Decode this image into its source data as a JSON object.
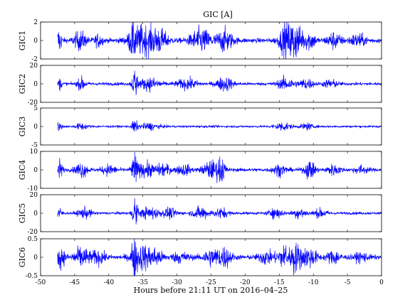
{
  "chart_data": {
    "type": "line",
    "title": "GIC [A]",
    "xlabel": "Hours before  21:11 UT on 2016–04–25",
    "xlim": [
      -50,
      0
    ],
    "xticks": [
      "-50",
      "-45",
      "-40",
      "-35",
      "-30",
      "-25",
      "-20",
      "-15",
      "-10",
      "-5",
      "0"
    ],
    "data_start_hour": -47.5,
    "line_color": "#0000ff",
    "panels": [
      {
        "name": "GIC1",
        "ylim": [
          -2,
          2
        ],
        "yticks": [
          "2",
          "0",
          "-2"
        ],
        "baseline": 0,
        "base_amp": 0.12,
        "bursts": [
          {
            "t": -47.3,
            "w": 0.4,
            "a": 0.6
          },
          {
            "t": -44.2,
            "w": 0.9,
            "a": 0.45
          },
          {
            "t": -41.5,
            "w": 0.6,
            "a": 0.3
          },
          {
            "t": -36.5,
            "w": 0.5,
            "a": 0.6
          },
          {
            "t": -35.0,
            "w": 1.8,
            "a": 0.75
          },
          {
            "t": -32.5,
            "w": 1.2,
            "a": 0.5
          },
          {
            "t": -26.5,
            "w": 1.5,
            "a": 0.6
          },
          {
            "t": -23.0,
            "w": 1.2,
            "a": 0.55
          },
          {
            "t": -14.0,
            "w": 1.0,
            "a": 0.8
          },
          {
            "t": -12.5,
            "w": 1.0,
            "a": 0.75
          },
          {
            "t": -10.5,
            "w": 0.8,
            "a": 0.45
          },
          {
            "t": -7.0,
            "w": 1.0,
            "a": 0.4
          },
          {
            "t": -3.5,
            "w": 1.2,
            "a": 0.3
          }
        ],
        "spikes": [
          {
            "t": -47.2,
            "v": -0.9
          },
          {
            "t": -12.9,
            "v": -1.8
          },
          {
            "t": -14.5,
            "v": 1.3
          },
          {
            "t": -11.6,
            "v": 1.1
          }
        ]
      },
      {
        "name": "GIC2",
        "ylim": [
          -20,
          20
        ],
        "yticks": [
          "20",
          "0",
          "-20"
        ],
        "baseline": 0,
        "base_amp": 0.8,
        "bursts": [
          {
            "t": -47.3,
            "w": 0.4,
            "a": 3
          },
          {
            "t": -44.0,
            "w": 0.6,
            "a": 3
          },
          {
            "t": -36.2,
            "w": 0.4,
            "a": 6
          },
          {
            "t": -34.0,
            "w": 1.5,
            "a": 3
          },
          {
            "t": -28.5,
            "w": 1.5,
            "a": 2.5
          },
          {
            "t": -23.0,
            "w": 1.2,
            "a": 3.5
          },
          {
            "t": -14.0,
            "w": 1.2,
            "a": 3
          },
          {
            "t": -11.0,
            "w": 1.0,
            "a": 2.5
          },
          {
            "t": -7.5,
            "w": 1.0,
            "a": 2
          }
        ],
        "spikes": [
          {
            "t": -36.2,
            "v": 14
          },
          {
            "t": -36.0,
            "v": -12
          },
          {
            "t": -35.8,
            "v": 8
          }
        ]
      },
      {
        "name": "GIC3",
        "ylim": [
          -5,
          5
        ],
        "yticks": [
          "5",
          "0",
          "-5"
        ],
        "baseline": 0,
        "base_amp": 0.15,
        "bursts": [
          {
            "t": -47.3,
            "w": 0.4,
            "a": 0.5
          },
          {
            "t": -44.0,
            "w": 0.8,
            "a": 0.4
          },
          {
            "t": -36.2,
            "w": 0.4,
            "a": 0.8
          },
          {
            "t": -34.0,
            "w": 1.4,
            "a": 0.4
          },
          {
            "t": -14.5,
            "w": 1.2,
            "a": 0.5
          },
          {
            "t": -11.0,
            "w": 0.8,
            "a": 0.4
          }
        ],
        "spikes": [
          {
            "t": -36.2,
            "v": -1.3
          },
          {
            "t": -47.2,
            "v": -0.9
          }
        ]
      },
      {
        "name": "GIC4",
        "ylim": [
          -10,
          10
        ],
        "yticks": [
          "10",
          "0",
          "-10"
        ],
        "baseline": 0,
        "base_amp": 0.45,
        "bursts": [
          {
            "t": -47.2,
            "w": 0.4,
            "a": 2.5
          },
          {
            "t": -44.0,
            "w": 0.9,
            "a": 1.8
          },
          {
            "t": -40.0,
            "w": 1.0,
            "a": 1.2
          },
          {
            "t": -36.2,
            "w": 0.5,
            "a": 3
          },
          {
            "t": -34.5,
            "w": 1.2,
            "a": 1.8
          },
          {
            "t": -32.0,
            "w": 1.0,
            "a": 1.5
          },
          {
            "t": -29.0,
            "w": 1.0,
            "a": 1.3
          },
          {
            "t": -25.0,
            "w": 1.2,
            "a": 2.2
          },
          {
            "t": -23.5,
            "w": 0.6,
            "a": 2.8
          },
          {
            "t": -15.0,
            "w": 1.0,
            "a": 1.3
          },
          {
            "t": -10.5,
            "w": 0.8,
            "a": 2.2
          },
          {
            "t": -7.0,
            "w": 1.0,
            "a": 1.2
          },
          {
            "t": -3.0,
            "w": 1.0,
            "a": 0.9
          }
        ],
        "spikes": [
          {
            "t": -36.2,
            "v": 9.5
          },
          {
            "t": -36.0,
            "v": -6.5
          },
          {
            "t": -23.3,
            "v": 5.5
          },
          {
            "t": -10.3,
            "v": -3.2
          }
        ]
      },
      {
        "name": "GIC5",
        "ylim": [
          -20,
          20
        ],
        "yticks": [
          "20",
          "0",
          "-20"
        ],
        "baseline": 0,
        "base_amp": 0.7,
        "bursts": [
          {
            "t": -47.3,
            "w": 0.4,
            "a": 3
          },
          {
            "t": -43.5,
            "w": 1.0,
            "a": 2.5
          },
          {
            "t": -36.2,
            "w": 0.4,
            "a": 5
          },
          {
            "t": -34.0,
            "w": 1.4,
            "a": 3
          },
          {
            "t": -31.0,
            "w": 1.0,
            "a": 2.5
          },
          {
            "t": -26.5,
            "w": 1.2,
            "a": 3
          },
          {
            "t": -23.5,
            "w": 1.0,
            "a": 2.5
          },
          {
            "t": -15.5,
            "w": 1.0,
            "a": 2.5
          },
          {
            "t": -12.0,
            "w": 1.0,
            "a": 2.5
          },
          {
            "t": -9.0,
            "w": 1.0,
            "a": 2
          }
        ],
        "spikes": [
          {
            "t": -36.2,
            "v": 16
          },
          {
            "t": -36.0,
            "v": -12
          },
          {
            "t": -35.8,
            "v": 9
          },
          {
            "t": -16.0,
            "v": 5
          }
        ]
      },
      {
        "name": "GIC6",
        "ylim": [
          -0.5,
          0.5
        ],
        "yticks": [
          "0.5",
          "0",
          "-0.5"
        ],
        "baseline": 0,
        "base_amp": 0.03,
        "bursts": [
          {
            "t": -47.0,
            "w": 0.6,
            "a": 0.12
          },
          {
            "t": -44.0,
            "w": 1.2,
            "a": 0.12
          },
          {
            "t": -41.5,
            "w": 1.0,
            "a": 0.08
          },
          {
            "t": -36.2,
            "w": 0.4,
            "a": 0.18
          },
          {
            "t": -35.0,
            "w": 1.5,
            "a": 0.15
          },
          {
            "t": -33.0,
            "w": 1.0,
            "a": 0.08
          },
          {
            "t": -29.5,
            "w": 1.2,
            "a": 0.06
          },
          {
            "t": -25.0,
            "w": 1.2,
            "a": 0.1
          },
          {
            "t": -23.0,
            "w": 1.0,
            "a": 0.12
          },
          {
            "t": -17.0,
            "w": 1.0,
            "a": 0.08
          },
          {
            "t": -14.5,
            "w": 1.0,
            "a": 0.12
          },
          {
            "t": -12.5,
            "w": 1.0,
            "a": 0.16
          },
          {
            "t": -10.5,
            "w": 1.0,
            "a": 0.12
          },
          {
            "t": -7.0,
            "w": 1.0,
            "a": 0.08
          },
          {
            "t": -3.0,
            "w": 1.0,
            "a": 0.05
          }
        ],
        "spikes": [
          {
            "t": -36.6,
            "v": 0.38
          },
          {
            "t": -36.3,
            "v": -0.5
          },
          {
            "t": -12.9,
            "v": -0.48
          },
          {
            "t": -14.0,
            "v": 0.32
          },
          {
            "t": -47.2,
            "v": -0.3
          }
        ]
      }
    ]
  }
}
